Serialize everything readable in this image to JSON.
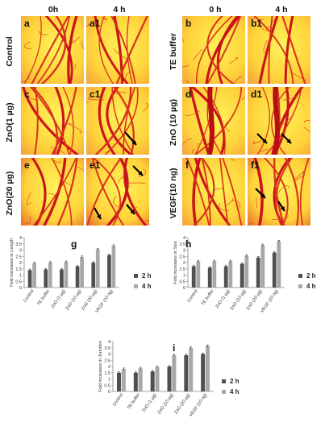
{
  "figure": {
    "col_headers": {
      "left_0h": "0h",
      "left_4h": "4 h",
      "right_0h": "0 h",
      "right_4h": "4 h"
    },
    "row_labels": {
      "left": [
        "Control",
        "ZnO(1 µg)",
        "ZnO(20 µg)"
      ],
      "right": [
        "TE buffer",
        "ZnO (10 µg)",
        "VEGF(10 ng)"
      ]
    },
    "panels": {
      "a": "a",
      "a1": "a1",
      "b": "b",
      "b1": "b1",
      "c": "c",
      "c1": "c1",
      "d": "d",
      "d1": "d1",
      "e": "e",
      "e1": "e1",
      "f": "f",
      "f1": "f1"
    },
    "arrow_icon": "black-arrow-icon"
  },
  "chart_data": [
    {
      "panel": "g",
      "type": "bar",
      "categories": [
        "Control",
        "TE buffer",
        "ZnO (1 µg)",
        "ZnO (10 µg)",
        "ZnO (20 µg)",
        "VEGF (10 ng)"
      ],
      "series": [
        {
          "name": "2 h",
          "values": [
            1.4,
            1.45,
            1.45,
            1.7,
            2.0,
            2.6
          ]
        },
        {
          "name": "4 h",
          "values": [
            1.95,
            2.0,
            2.05,
            2.45,
            3.05,
            3.35
          ]
        }
      ],
      "ylabel": "Fold increases in Length",
      "ylim": [
        0,
        4
      ],
      "yticks": [
        "0",
        "0.5",
        "1",
        "1.5",
        "2",
        "2.5",
        "3",
        "3.5",
        "4"
      ],
      "legend": "right",
      "colors": [
        "#505050",
        "#a8a8a8"
      ]
    },
    {
      "panel": "h",
      "type": "bar",
      "categories": [
        "Control",
        "TE buffer",
        "ZnO (1 µg)",
        "ZnO (10 µg)",
        "ZnO (20 µg)",
        "VEGF (10 ng)"
      ],
      "series": [
        {
          "name": "2 h",
          "values": [
            1.7,
            1.6,
            1.7,
            1.9,
            2.4,
            2.8
          ]
        },
        {
          "name": "4 h",
          "values": [
            2.1,
            2.1,
            2.1,
            2.55,
            3.4,
            3.7
          ]
        }
      ],
      "ylabel": "Fold increases in Size",
      "ylim": [
        0,
        4
      ],
      "yticks": [
        "0",
        "0.5",
        "1",
        "1.5",
        "2",
        "2.5",
        "3",
        "3.5",
        "4"
      ],
      "legend": "right",
      "colors": [
        "#505050",
        "#a8a8a8"
      ]
    },
    {
      "panel": "i",
      "type": "bar",
      "categories": [
        "Control",
        "TE buffer",
        "ZnO (1 µg)",
        "ZnO (10 µg)",
        "ZnO (20 µg)",
        "VEGF (10 ng)"
      ],
      "series": [
        {
          "name": "2 h",
          "values": [
            1.5,
            1.5,
            1.6,
            2.0,
            2.9,
            3.0
          ]
        },
        {
          "name": "4 h",
          "values": [
            1.8,
            1.85,
            1.95,
            2.9,
            3.5,
            3.65
          ]
        }
      ],
      "ylabel": "Fold increases in Junction",
      "ylim": [
        0,
        4
      ],
      "yticks": [
        "0",
        "0.5",
        "1",
        "1.5",
        "2",
        "2.5",
        "3",
        "3.5",
        "4"
      ],
      "legend": "right",
      "colors": [
        "#505050",
        "#a8a8a8"
      ]
    }
  ]
}
